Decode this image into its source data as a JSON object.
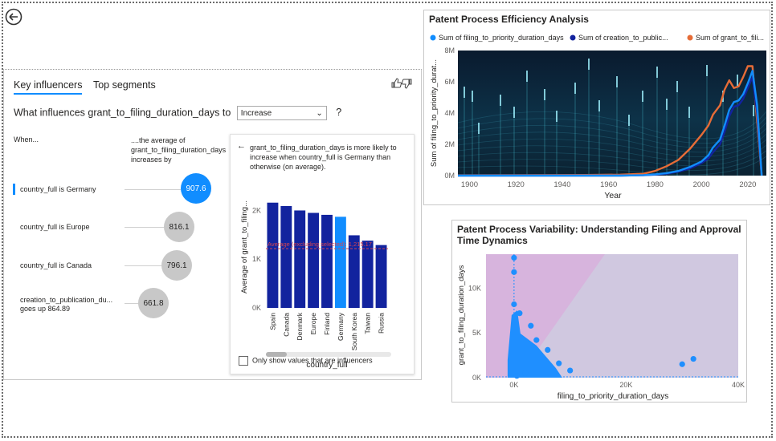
{
  "nav": {
    "back_icon": "back-arrow-icon"
  },
  "key_influencers": {
    "tabs": [
      "Key influencers",
      "Top segments"
    ],
    "question_prefix": "What influences grant_to_filing_duration_days to",
    "dropdown_value": "Increase",
    "question_help": "?",
    "col_when": "When...",
    "col_avg": "....the average of grant_to_filing_duration_days increases by",
    "influencers": [
      {
        "label": "country_full is Germany",
        "value": "907.6",
        "selected": true
      },
      {
        "label": "country_full is Europe",
        "value": "816.1",
        "selected": false
      },
      {
        "label": "country_full is Canada",
        "value": "796.1",
        "selected": false
      },
      {
        "label": "creation_to_publication_du... goes up 864.89",
        "value": "661.8",
        "selected": false
      }
    ],
    "detail": {
      "text": "grant_to_filing_duration_days is more likely to increase when country_full is Germany than otherwise (on average).",
      "ylabel": "Average of grant_to_filing...",
      "xlabel": "country_full",
      "average_label": "Average (excluding selected): 1,215.17",
      "checkbox_label": "Only show values that are influencers",
      "colors": {
        "bar": "#12239e",
        "selected": "#118dff",
        "avg": "#d64550"
      }
    }
  },
  "efficiency": {
    "title": "Patent Process Efficiency Analysis",
    "legend": [
      {
        "label": "Sum of filing_to_priority_duration_days",
        "color": "#118dff"
      },
      {
        "label": "Sum of creation_to_public...",
        "color": "#12239e"
      },
      {
        "label": "Sum of grant_to_fili...",
        "color": "#e66c37"
      }
    ]
  },
  "variability": {
    "title": "Patent Process Variability: Understanding Filing and Approval Time Dynamics"
  },
  "chart_data": [
    {
      "type": "bar",
      "title": "",
      "xlabel": "country_full",
      "ylabel": "Average of grant_to_filing...",
      "categories": [
        "Spain",
        "Canada",
        "Denmark",
        "Europe",
        "Finland",
        "Germany",
        "South Korea",
        "Taiwan",
        "Russia"
      ],
      "values": [
        2160,
        2090,
        2000,
        1950,
        1910,
        1870,
        1490,
        1380,
        1290
      ],
      "highlight": "Germany",
      "reference_line": {
        "label": "Average (excluding selected): 1,215.17",
        "value": 1215.17
      },
      "yticks": [
        "0K",
        "1K",
        "2K"
      ],
      "ylim": [
        0,
        2600
      ]
    },
    {
      "type": "line",
      "title": "Patent Process Efficiency Analysis",
      "xlabel": "Year",
      "ylabel": "Sum of filing_to_priority_durat...",
      "xticks": [
        "1900",
        "1920",
        "1940",
        "1960",
        "1980",
        "2000",
        "2020"
      ],
      "yticks": [
        "0M",
        "2M",
        "4M",
        "6M",
        "8M"
      ],
      "xlim": [
        1895,
        2028
      ],
      "ylim": [
        0,
        8000000
      ],
      "x": [
        1895,
        1920,
        1950,
        1965,
        1975,
        1980,
        1985,
        1990,
        1995,
        2000,
        2003,
        2005,
        2008,
        2010,
        2012,
        2014,
        2016,
        2018,
        2020,
        2022,
        2024,
        2026
      ],
      "series": [
        {
          "name": "Sum of filing_to_priority_duration_days",
          "values": [
            0,
            0,
            0,
            0,
            30000,
            80000,
            160000,
            300000,
            550000,
            900000,
            1300000,
            1800000,
            2300000,
            3200000,
            4200000,
            4700000,
            4800000,
            5200000,
            5900000,
            6700000,
            4500000,
            0
          ]
        },
        {
          "name": "Sum of creation_to_public...",
          "values": [
            0,
            0,
            0,
            0,
            20000,
            60000,
            120000,
            250000,
            450000,
            800000,
            1100000,
            1500000,
            2000000,
            2800000,
            3800000,
            4400000,
            4500000,
            4900000,
            5600000,
            6300000,
            4000000,
            0
          ]
        },
        {
          "name": "Sum of grant_to_fili...",
          "values": [
            20000,
            30000,
            40000,
            60000,
            120000,
            300000,
            600000,
            1000000,
            1700000,
            2600000,
            3200000,
            3900000,
            4500000,
            5500000,
            6100000,
            5600000,
            5700000,
            6300000,
            7000000,
            7000000,
            3500000,
            0
          ]
        }
      ]
    },
    {
      "type": "scatter",
      "title": "Patent Process Variability: Understanding Filing and Approval Time Dynamics",
      "xlabel": "filing_to_priority_duration_days",
      "ylabel": "grant_to_filing_duration_days",
      "xticks": [
        "0K",
        "20K",
        "40K"
      ],
      "yticks": [
        "0K",
        "5K",
        "10K"
      ],
      "xlim": [
        -5000,
        40000
      ],
      "ylim": [
        0,
        13800
      ],
      "points": [
        [
          0,
          13400
        ],
        [
          0,
          11800
        ],
        [
          0,
          8200
        ],
        [
          1000,
          7200
        ],
        [
          3000,
          5800
        ],
        [
          4000,
          4200
        ],
        [
          6000,
          3100
        ],
        [
          8000,
          1600
        ],
        [
          10000,
          800
        ],
        [
          30000,
          1500
        ],
        [
          32000,
          2100
        ],
        [
          2000,
          500
        ],
        [
          500,
          200
        ]
      ]
    }
  ]
}
